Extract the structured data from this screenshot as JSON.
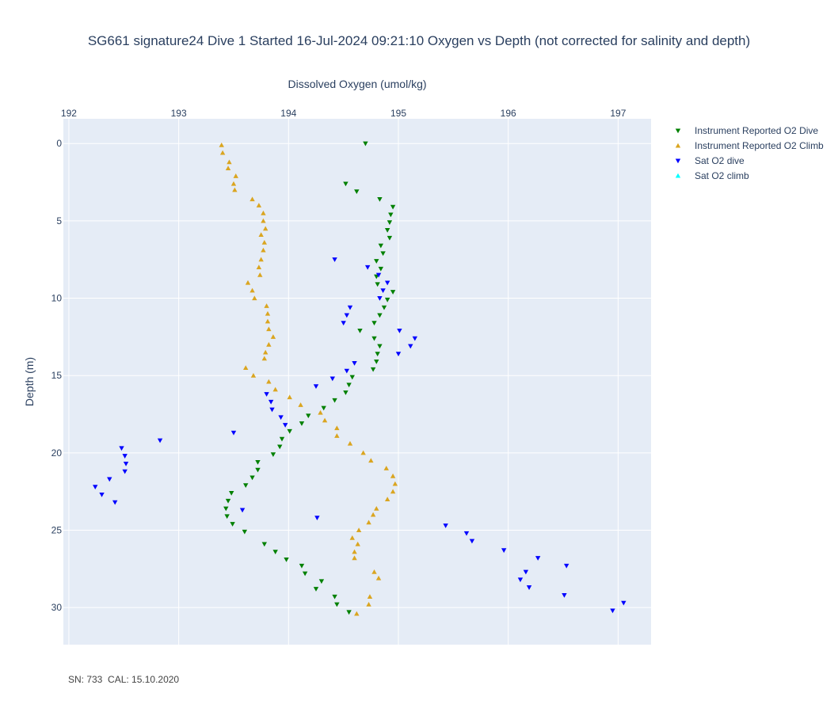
{
  "chart_data": {
    "type": "scatter",
    "title": "SG661 signature24 Dive 1 Started 16-Jul-2024 09:21:10  Oxygen vs Depth (not corrected for salinity and depth)",
    "xlabel": "Dissolved Oxygen (umol/kg)",
    "ylabel": "Depth (m)",
    "x_axis_position": "top",
    "y_axis_reversed": true,
    "xlim": [
      191.95,
      197.3
    ],
    "ylim": [
      32.4,
      -1.6
    ],
    "xticks": [
      192,
      193,
      194,
      195,
      196,
      197
    ],
    "yticks": [
      0,
      5,
      10,
      15,
      20,
      25,
      30
    ],
    "grid": true,
    "legend_position": "top-right",
    "series": [
      {
        "name": "Instrument Reported O2 Dive",
        "color": "#008000",
        "marker": "triangle-down",
        "points": [
          [
            194.7,
            0.0
          ],
          [
            194.52,
            2.6
          ],
          [
            194.62,
            3.1
          ],
          [
            194.83,
            3.6
          ],
          [
            194.95,
            4.1
          ],
          [
            194.93,
            4.6
          ],
          [
            194.92,
            5.1
          ],
          [
            194.9,
            5.6
          ],
          [
            194.92,
            6.1
          ],
          [
            194.84,
            6.6
          ],
          [
            194.86,
            7.1
          ],
          [
            194.8,
            7.6
          ],
          [
            194.84,
            8.1
          ],
          [
            194.8,
            8.6
          ],
          [
            194.81,
            9.1
          ],
          [
            194.95,
            9.6
          ],
          [
            194.9,
            10.1
          ],
          [
            194.87,
            10.6
          ],
          [
            194.83,
            11.1
          ],
          [
            194.78,
            11.6
          ],
          [
            194.65,
            12.1
          ],
          [
            194.78,
            12.6
          ],
          [
            194.83,
            13.1
          ],
          [
            194.81,
            13.6
          ],
          [
            194.8,
            14.1
          ],
          [
            194.77,
            14.6
          ],
          [
            194.58,
            15.1
          ],
          [
            194.55,
            15.6
          ],
          [
            194.52,
            16.1
          ],
          [
            194.42,
            16.6
          ],
          [
            194.32,
            17.1
          ],
          [
            194.18,
            17.6
          ],
          [
            194.12,
            18.1
          ],
          [
            194.01,
            18.6
          ],
          [
            193.94,
            19.1
          ],
          [
            193.92,
            19.6
          ],
          [
            193.86,
            20.1
          ],
          [
            193.72,
            20.6
          ],
          [
            193.72,
            21.1
          ],
          [
            193.67,
            21.6
          ],
          [
            193.61,
            22.1
          ],
          [
            193.48,
            22.6
          ],
          [
            193.45,
            23.1
          ],
          [
            193.43,
            23.6
          ],
          [
            193.44,
            24.1
          ],
          [
            193.49,
            24.6
          ],
          [
            193.6,
            25.1
          ],
          [
            193.78,
            25.9
          ],
          [
            193.88,
            26.4
          ],
          [
            193.98,
            26.9
          ],
          [
            194.12,
            27.3
          ],
          [
            194.15,
            27.8
          ],
          [
            194.3,
            28.3
          ],
          [
            194.25,
            28.8
          ],
          [
            194.42,
            29.3
          ],
          [
            194.44,
            29.8
          ],
          [
            194.55,
            30.3
          ]
        ]
      },
      {
        "name": "Instrument Reported O2 Climb",
        "color": "#daa520",
        "marker": "triangle-up",
        "points": [
          [
            194.62,
            30.4
          ],
          [
            194.73,
            29.8
          ],
          [
            194.74,
            29.3
          ],
          [
            194.82,
            28.1
          ],
          [
            194.78,
            27.7
          ],
          [
            194.6,
            26.8
          ],
          [
            194.6,
            26.4
          ],
          [
            194.63,
            25.9
          ],
          [
            194.58,
            25.5
          ],
          [
            194.64,
            25.0
          ],
          [
            194.73,
            24.5
          ],
          [
            194.77,
            24.0
          ],
          [
            194.8,
            23.6
          ],
          [
            194.9,
            23.0
          ],
          [
            194.95,
            22.5
          ],
          [
            194.97,
            22.0
          ],
          [
            194.95,
            21.5
          ],
          [
            194.89,
            21.0
          ],
          [
            194.75,
            20.5
          ],
          [
            194.68,
            20.0
          ],
          [
            194.56,
            19.4
          ],
          [
            194.44,
            18.9
          ],
          [
            194.44,
            18.4
          ],
          [
            194.33,
            17.9
          ],
          [
            194.29,
            17.4
          ],
          [
            194.11,
            16.9
          ],
          [
            194.01,
            16.4
          ],
          [
            193.88,
            15.9
          ],
          [
            193.82,
            15.4
          ],
          [
            193.68,
            15.0
          ],
          [
            193.61,
            14.5
          ],
          [
            193.78,
            13.9
          ],
          [
            193.79,
            13.5
          ],
          [
            193.82,
            13.0
          ],
          [
            193.86,
            12.5
          ],
          [
            193.82,
            12.0
          ],
          [
            193.81,
            11.5
          ],
          [
            193.81,
            11.0
          ],
          [
            193.8,
            10.5
          ],
          [
            193.69,
            10.0
          ],
          [
            193.67,
            9.5
          ],
          [
            193.63,
            9.0
          ],
          [
            193.74,
            8.5
          ],
          [
            193.73,
            8.0
          ],
          [
            193.75,
            7.5
          ],
          [
            193.77,
            6.9
          ],
          [
            193.78,
            6.4
          ],
          [
            193.75,
            5.9
          ],
          [
            193.79,
            5.5
          ],
          [
            193.77,
            5.0
          ],
          [
            193.77,
            4.5
          ],
          [
            193.73,
            4.0
          ],
          [
            193.67,
            3.6
          ],
          [
            193.51,
            3.0
          ],
          [
            193.5,
            2.6
          ],
          [
            193.52,
            2.1
          ],
          [
            193.45,
            1.6
          ],
          [
            193.46,
            1.2
          ],
          [
            193.4,
            0.6
          ],
          [
            193.39,
            0.1
          ]
        ]
      },
      {
        "name": "Sat O2 dive",
        "color": "#0000ff",
        "marker": "triangle-down",
        "points": [
          [
            194.42,
            7.5
          ],
          [
            194.72,
            8.0
          ],
          [
            194.82,
            8.5
          ],
          [
            194.9,
            9.0
          ],
          [
            194.86,
            9.5
          ],
          [
            194.83,
            10.0
          ],
          [
            194.56,
            10.6
          ],
          [
            194.53,
            11.1
          ],
          [
            194.5,
            11.6
          ],
          [
            195.01,
            12.1
          ],
          [
            195.15,
            12.6
          ],
          [
            195.11,
            13.1
          ],
          [
            195.0,
            13.6
          ],
          [
            194.6,
            14.2
          ],
          [
            194.53,
            14.7
          ],
          [
            194.4,
            15.2
          ],
          [
            194.25,
            15.7
          ],
          [
            193.8,
            16.2
          ],
          [
            193.84,
            16.7
          ],
          [
            193.85,
            17.2
          ],
          [
            193.93,
            17.7
          ],
          [
            193.97,
            18.2
          ],
          [
            193.5,
            18.7
          ],
          [
            192.83,
            19.2
          ],
          [
            192.48,
            19.7
          ],
          [
            192.51,
            20.2
          ],
          [
            192.52,
            20.7
          ],
          [
            192.51,
            21.2
          ],
          [
            192.37,
            21.7
          ],
          [
            192.24,
            22.2
          ],
          [
            192.3,
            22.7
          ],
          [
            192.42,
            23.2
          ],
          [
            193.58,
            23.7
          ],
          [
            194.26,
            24.2
          ],
          [
            195.43,
            24.7
          ],
          [
            195.62,
            25.2
          ],
          [
            195.67,
            25.7
          ],
          [
            195.96,
            26.3
          ],
          [
            196.27,
            26.8
          ],
          [
            196.53,
            27.3
          ],
          [
            196.16,
            27.7
          ],
          [
            196.11,
            28.2
          ],
          [
            196.19,
            28.7
          ],
          [
            196.51,
            29.2
          ],
          [
            197.05,
            29.7
          ],
          [
            196.95,
            30.2
          ]
        ]
      },
      {
        "name": "Sat O2 climb",
        "color": "#00ffff",
        "marker": "triangle-up",
        "points": []
      }
    ]
  },
  "footer": {
    "text": "SN: 733  CAL: 15.10.2020"
  }
}
